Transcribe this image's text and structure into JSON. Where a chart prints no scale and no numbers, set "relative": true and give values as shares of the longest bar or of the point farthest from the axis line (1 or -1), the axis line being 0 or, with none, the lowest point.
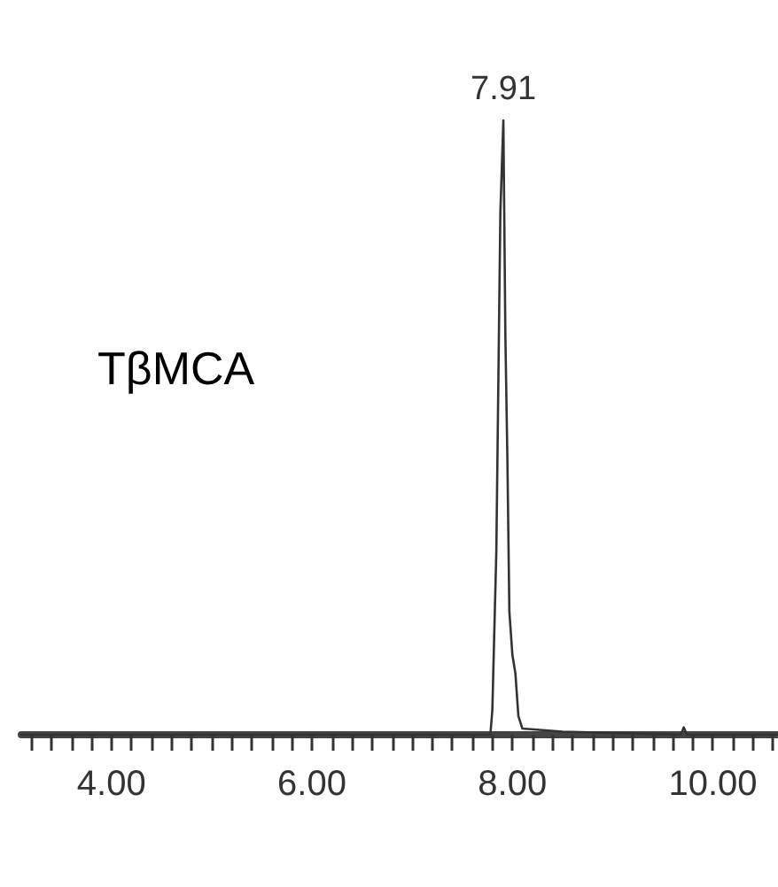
{
  "chart_data": {
    "type": "line",
    "relative": true,
    "marker": "none",
    "grid": false,
    "annotations": [
      {
        "text": "7.91",
        "x": 7.91,
        "y": 1
      },
      "TβMCA"
    ],
    "xlim": [
      3.1,
      10.65
    ],
    "xticks": [
      {
        "value": 3.2,
        "label": null
      },
      {
        "value": 3.4,
        "label": null
      },
      {
        "value": 3.6,
        "label": null
      },
      {
        "value": 3.8,
        "label": null
      },
      {
        "value": 4,
        "label": "4.00"
      },
      {
        "value": 4.2,
        "label": null
      },
      {
        "value": 4.4,
        "label": null
      },
      {
        "value": 4.6,
        "label": null
      },
      {
        "value": 4.8,
        "label": null
      },
      {
        "value": 5,
        "label": null
      },
      {
        "value": 5.2,
        "label": null
      },
      {
        "value": 5.4,
        "label": null
      },
      {
        "value": 5.6,
        "label": null
      },
      {
        "value": 5.8,
        "label": null
      },
      {
        "value": 6,
        "label": "6.00"
      },
      {
        "value": 6.2,
        "label": null
      },
      {
        "value": 6.4,
        "label": null
      },
      {
        "value": 6.6,
        "label": null
      },
      {
        "value": 6.8,
        "label": null
      },
      {
        "value": 7,
        "label": null
      },
      {
        "value": 7.2,
        "label": null
      },
      {
        "value": 7.4,
        "label": null
      },
      {
        "value": 7.6,
        "label": null
      },
      {
        "value": 7.8,
        "label": null
      },
      {
        "value": 8,
        "label": "8.00"
      },
      {
        "value": 8.2,
        "label": null
      },
      {
        "value": 8.4,
        "label": null
      },
      {
        "value": 8.6,
        "label": null
      },
      {
        "value": 8.8,
        "label": null
      },
      {
        "value": 9,
        "label": null
      },
      {
        "value": 9.2,
        "label": null
      },
      {
        "value": 9.4,
        "label": null
      },
      {
        "value": 9.6,
        "label": null
      },
      {
        "value": 9.8,
        "label": null
      },
      {
        "value": 10,
        "label": "10.00"
      },
      {
        "value": 10.2,
        "label": null
      },
      {
        "value": 10.4,
        "label": null
      },
      {
        "value": 10.6,
        "label": null
      }
    ],
    "series": [
      {
        "color": "#333333",
        "x": [
          3.1,
          7.78,
          7.8,
          7.84,
          7.88,
          7.91,
          7.93,
          7.95,
          7.97,
          8.0,
          8.03,
          8.06,
          8.1,
          8.5,
          9.68,
          9.71,
          9.74,
          10.65
        ],
        "values": [
          0,
          0,
          0.04,
          0.3,
          0.85,
          1,
          0.65,
          0.45,
          0.2,
          0.13,
          0.1,
          0.03,
          0.01,
          0.005,
          0,
          0.012,
          0,
          0
        ]
      }
    ]
  }
}
